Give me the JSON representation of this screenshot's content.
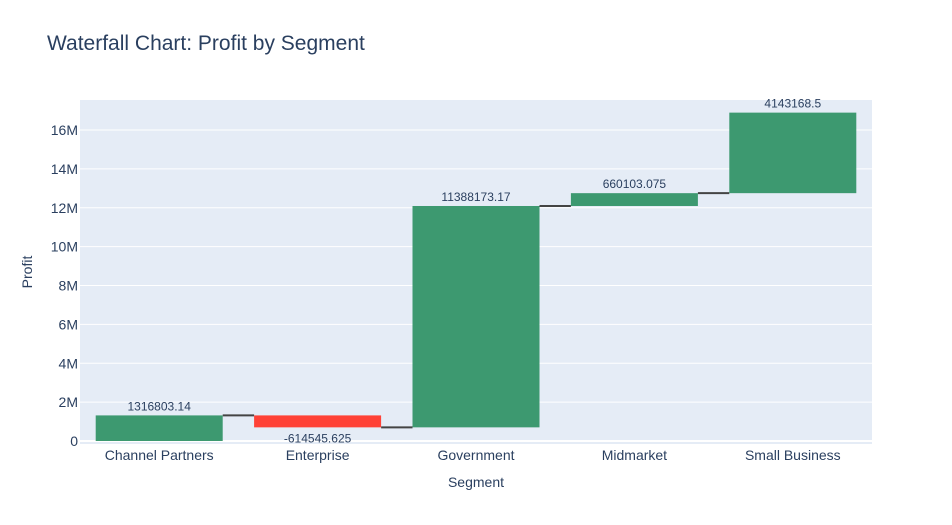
{
  "chart_data": {
    "type": "waterfall",
    "title": "Waterfall Chart: Profit by Segment",
    "xlabel": "Segment",
    "ylabel": "Profit",
    "categories": [
      "Channel Partners",
      "Enterprise",
      "Government",
      "Midmarket",
      "Small Business"
    ],
    "values": [
      1316803.14,
      -614545.625,
      11388173.17,
      660103.075,
      4143168.5
    ],
    "labels": [
      "1316803.14",
      "-614545.625",
      "11388173.17",
      "660103.075",
      "4143168.5"
    ],
    "ylim": [
      0,
      16000000
    ],
    "yticks": [
      0,
      2000000,
      4000000,
      6000000,
      8000000,
      10000000,
      12000000,
      14000000,
      16000000
    ],
    "ytick_labels": [
      "0",
      "2M",
      "4M",
      "6M",
      "8M",
      "10M",
      "12M",
      "14M",
      "16M"
    ],
    "grid": true,
    "colors": {
      "increasing": "#3d9970",
      "decreasing": "#ff4136",
      "connector": "#444444",
      "plot_bg": "#e5ecf6",
      "grid": "#ffffff"
    }
  }
}
